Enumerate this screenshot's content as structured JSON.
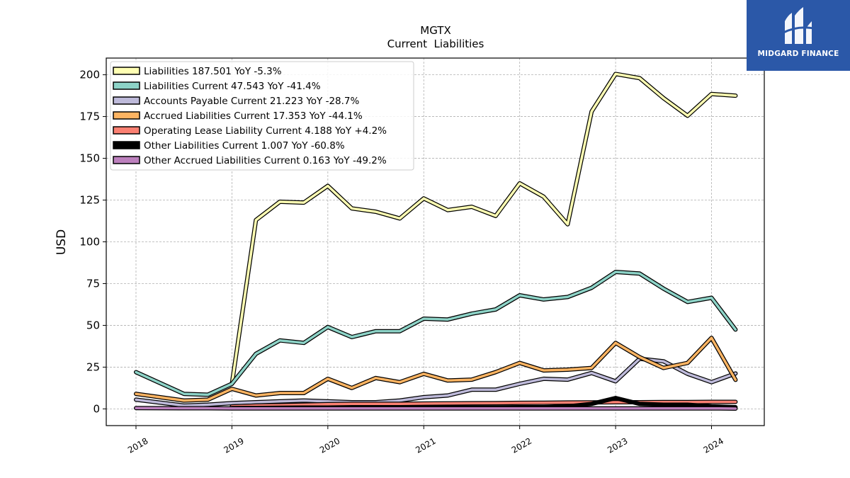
{
  "brand": {
    "name": "MIDGARD FINANCE",
    "color": "#2b58a8"
  },
  "chart_data": {
    "type": "line",
    "title": "MGTX",
    "subtitle": "Current  Liabilities",
    "ylabel": "USD",
    "xlabel": "",
    "ylim": [
      -10,
      210
    ],
    "yticks": [
      0,
      25,
      50,
      75,
      100,
      125,
      150,
      175,
      200
    ],
    "xlim": [
      2017.69,
      2024.55
    ],
    "xtick_labels": [
      "2018",
      "2019",
      "2020",
      "2021",
      "2022",
      "2023",
      "2024"
    ],
    "grid": true,
    "legend_position": "top-left",
    "x": [
      2018.0,
      2018.5,
      2018.75,
      2019.0,
      2019.25,
      2019.5,
      2019.75,
      2020.0,
      2020.25,
      2020.5,
      2020.75,
      2021.0,
      2021.25,
      2021.5,
      2021.75,
      2022.0,
      2022.25,
      2022.5,
      2022.75,
      2023.0,
      2023.25,
      2023.5,
      2023.75,
      2024.0,
      2024.25
    ],
    "series": [
      {
        "name": "Liabilities",
        "legend": "Liabilities  187.501 YoY -5.3%",
        "color": "#ffffb3",
        "values": [
          null,
          null,
          null,
          15,
          113,
          124,
          123.5,
          133.5,
          120,
          118,
          114,
          126,
          119,
          121,
          115.5,
          135,
          127,
          110.5,
          178,
          200.5,
          198,
          186,
          175.5,
          188.5,
          187.5
        ]
      },
      {
        "name": "Liabilities Current",
        "legend": "Liabilities Current  47.543 YoY -41.4%",
        "color": "#8dd3c7",
        "values": [
          22,
          9,
          8.5,
          15,
          33,
          41,
          39.5,
          49,
          43,
          46.5,
          46.5,
          54,
          53.5,
          57,
          59.5,
          68,
          65.5,
          67,
          72.5,
          82,
          81,
          72,
          64,
          66.5,
          47.5
        ]
      },
      {
        "name": "Accounts Payable Current",
        "legend": "Accounts Payable Current  21.223 YoY -28.7%",
        "color": "#bebada",
        "values": [
          5.5,
          2,
          2.5,
          3.5,
          4,
          4.5,
          5,
          4.5,
          4,
          4,
          5,
          7,
          8,
          11.5,
          11.5,
          15,
          18,
          17.5,
          21.5,
          16.5,
          30,
          28.5,
          21,
          16,
          21.2
        ]
      },
      {
        "name": "Accrued Liabilities Current",
        "legend": "Accrued Liabilities Current  17.353 YoY -44.1%",
        "color": "#fdb462",
        "values": [
          9,
          5,
          5.5,
          12,
          8,
          9.5,
          9.5,
          18,
          12.5,
          18.5,
          16,
          21,
          17,
          17.5,
          22,
          27.5,
          23,
          23.5,
          24.5,
          39.5,
          31,
          24.5,
          27.5,
          42.5,
          17.4
        ]
      },
      {
        "name": "Operating Lease Liability Current",
        "legend": "Operating Lease Liability Current  4.188 YoY +4.2%",
        "color": "#fb8072",
        "values": [
          null,
          null,
          null,
          1.5,
          2,
          2.2,
          2.5,
          2.8,
          3,
          3,
          3,
          3.2,
          3.3,
          3.4,
          3.5,
          3.6,
          3.7,
          3.8,
          3.9,
          4,
          4,
          4.1,
          4.1,
          4.2,
          4.2
        ]
      },
      {
        "name": "Other Liabilities Current",
        "legend": "Other Liabilities Current  1.007 YoY -60.8%",
        "color": "#000000",
        "values": [
          null,
          null,
          null,
          0.5,
          0.6,
          0.7,
          0.8,
          0.8,
          0.8,
          0.8,
          0.8,
          0.8,
          0.9,
          0.9,
          0.9,
          1,
          1,
          1.5,
          3,
          6.5,
          3,
          2.5,
          2.5,
          1.5,
          1.0
        ]
      },
      {
        "name": "Other Accrued Liabilities Current",
        "legend": "Other Accrued Liabilities Current  0.163 YoY -49.2%",
        "color": "#bc80bd",
        "values": [
          0.5,
          0.4,
          0.4,
          0.3,
          0.3,
          0.3,
          0.3,
          0.3,
          0.3,
          0.3,
          0.3,
          0.3,
          0.3,
          0.3,
          0.3,
          0.3,
          0.3,
          0.3,
          0.3,
          0.3,
          0.3,
          0.3,
          0.3,
          0.3,
          0.163
        ]
      }
    ]
  }
}
